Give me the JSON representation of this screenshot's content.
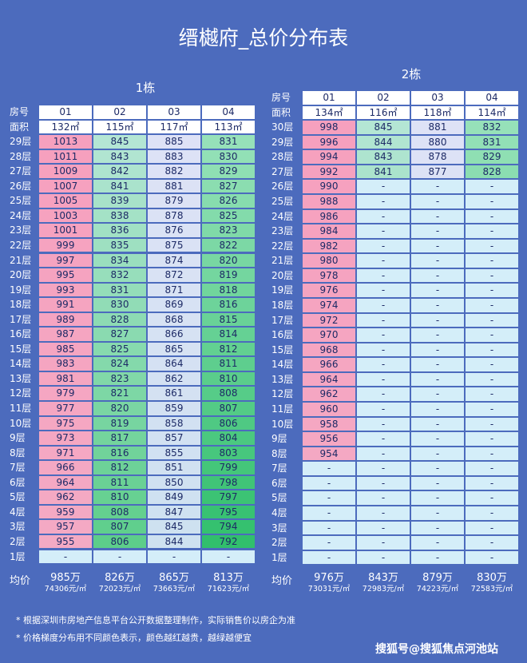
{
  "title": "缙樾府_总价分布表",
  "buildings": [
    {
      "name": "1栋",
      "header": [
        "房号",
        "01",
        "02",
        "03",
        "04"
      ],
      "area": [
        "面积",
        "132㎡",
        "115㎡",
        "117㎡",
        "113㎡"
      ],
      "rows": [
        [
          "29层",
          "1013",
          "845",
          "885",
          "831"
        ],
        [
          "28层",
          "1011",
          "843",
          "883",
          "830"
        ],
        [
          "27层",
          "1009",
          "842",
          "882",
          "829"
        ],
        [
          "26层",
          "1007",
          "841",
          "881",
          "827"
        ],
        [
          "25层",
          "1005",
          "839",
          "879",
          "826"
        ],
        [
          "24层",
          "1003",
          "838",
          "878",
          "825"
        ],
        [
          "23层",
          "1001",
          "836",
          "876",
          "823"
        ],
        [
          "22层",
          "999",
          "835",
          "875",
          "822"
        ],
        [
          "21层",
          "997",
          "834",
          "874",
          "820"
        ],
        [
          "20层",
          "995",
          "832",
          "872",
          "819"
        ],
        [
          "19层",
          "993",
          "831",
          "871",
          "818"
        ],
        [
          "18层",
          "991",
          "830",
          "869",
          "816"
        ],
        [
          "17层",
          "989",
          "828",
          "868",
          "815"
        ],
        [
          "16层",
          "987",
          "827",
          "866",
          "814"
        ],
        [
          "15层",
          "985",
          "825",
          "865",
          "812"
        ],
        [
          "14层",
          "983",
          "824",
          "864",
          "811"
        ],
        [
          "13层",
          "981",
          "823",
          "862",
          "810"
        ],
        [
          "12层",
          "979",
          "821",
          "861",
          "808"
        ],
        [
          "11层",
          "977",
          "820",
          "859",
          "807"
        ],
        [
          "10层",
          "975",
          "819",
          "858",
          "806"
        ],
        [
          "9层",
          "973",
          "817",
          "857",
          "804"
        ],
        [
          "8层",
          "971",
          "816",
          "855",
          "803"
        ],
        [
          "7层",
          "966",
          "812",
          "851",
          "799"
        ],
        [
          "6层",
          "964",
          "811",
          "850",
          "798"
        ],
        [
          "5层",
          "962",
          "810",
          "849",
          "797"
        ],
        [
          "4层",
          "959",
          "808",
          "847",
          "795"
        ],
        [
          "3层",
          "957",
          "807",
          "845",
          "794"
        ],
        [
          "2层",
          "955",
          "806",
          "844",
          "792"
        ],
        [
          "1层",
          "-",
          "-",
          "-",
          "-"
        ]
      ],
      "avg": {
        "label": "均价",
        "totals": [
          "985万",
          "826万",
          "865万",
          "813万"
        ],
        "unit_prices": [
          "74306元/㎡",
          "72023元/㎡",
          "73663元/㎡",
          "71623元/㎡"
        ]
      }
    },
    {
      "name": "2栋",
      "header": [
        "房号",
        "01",
        "02",
        "03",
        "04"
      ],
      "area": [
        "面积",
        "134㎡",
        "116㎡",
        "118㎡",
        "114㎡"
      ],
      "rows": [
        [
          "30层",
          "998",
          "845",
          "881",
          "832"
        ],
        [
          "29层",
          "996",
          "844",
          "880",
          "831"
        ],
        [
          "28层",
          "994",
          "843",
          "878",
          "829"
        ],
        [
          "27层",
          "992",
          "841",
          "877",
          "828"
        ],
        [
          "26层",
          "990",
          "-",
          "-",
          "-"
        ],
        [
          "25层",
          "988",
          "-",
          "-",
          "-"
        ],
        [
          "24层",
          "986",
          "-",
          "-",
          "-"
        ],
        [
          "23层",
          "984",
          "-",
          "-",
          "-"
        ],
        [
          "22层",
          "982",
          "-",
          "-",
          "-"
        ],
        [
          "21层",
          "980",
          "-",
          "-",
          "-"
        ],
        [
          "20层",
          "978",
          "-",
          "-",
          "-"
        ],
        [
          "19层",
          "976",
          "-",
          "-",
          "-"
        ],
        [
          "18层",
          "974",
          "-",
          "-",
          "-"
        ],
        [
          "17层",
          "972",
          "-",
          "-",
          "-"
        ],
        [
          "16层",
          "970",
          "-",
          "-",
          "-"
        ],
        [
          "15层",
          "968",
          "-",
          "-",
          "-"
        ],
        [
          "14层",
          "966",
          "-",
          "-",
          "-"
        ],
        [
          "13层",
          "964",
          "-",
          "-",
          "-"
        ],
        [
          "12层",
          "962",
          "-",
          "-",
          "-"
        ],
        [
          "11层",
          "960",
          "-",
          "-",
          "-"
        ],
        [
          "10层",
          "958",
          "-",
          "-",
          "-"
        ],
        [
          "9层",
          "956",
          "-",
          "-",
          "-"
        ],
        [
          "8层",
          "954",
          "-",
          "-",
          "-"
        ],
        [
          "7层",
          "-",
          "-",
          "-",
          "-"
        ],
        [
          "6层",
          "-",
          "-",
          "-",
          "-"
        ],
        [
          "5层",
          "-",
          "-",
          "-",
          "-"
        ],
        [
          "4层",
          "-",
          "-",
          "-",
          "-"
        ],
        [
          "3层",
          "-",
          "-",
          "-",
          "-"
        ],
        [
          "2层",
          "-",
          "-",
          "-",
          "-"
        ],
        [
          "1层",
          "-",
          "-",
          "-",
          "-"
        ]
      ],
      "avg": {
        "label": "均价",
        "totals": [
          "976万",
          "843万",
          "879万",
          "830万"
        ],
        "unit_prices": [
          "73031元/㎡",
          "72983元/㎡",
          "74223元/㎡",
          "72583元/㎡"
        ]
      }
    }
  ],
  "notes": [
    "* 根据深圳市房地产信息平台公开数据整理制作，实际销售价以房企为准",
    "* 价格梯度分布用不同颜色表示，颜色越红越贵，越绿越便宜"
  ],
  "watermark": "搜狐号@搜狐焦点河池站"
}
